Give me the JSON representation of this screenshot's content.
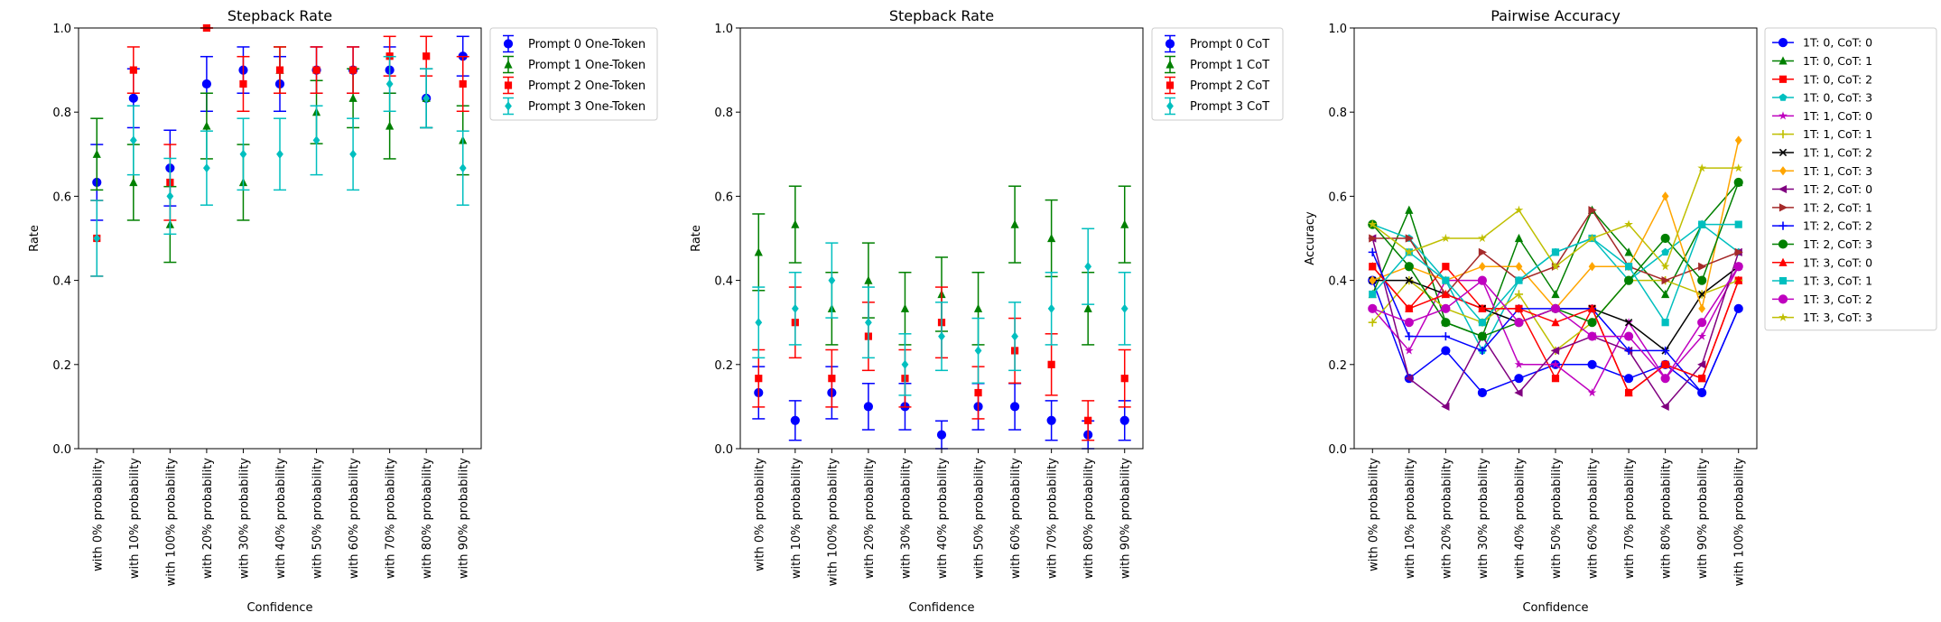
{
  "chart_data": [
    {
      "type": "scatter",
      "title": "Stepback Rate",
      "xlabel": "Confidence",
      "ylabel": "Rate",
      "ylim": [
        0,
        1
      ],
      "yticks": [
        0.0,
        0.2,
        0.4,
        0.6,
        0.8,
        1.0
      ],
      "ytick_labels": [
        "0.0",
        "0.2",
        "0.4",
        "0.6",
        "0.8",
        "1.0"
      ],
      "error_bars": true,
      "legend_position": "outside-right-top",
      "categories": [
        "with 0% probability",
        "with 10% probability",
        "with 100% probability",
        "with 20% probability",
        "with 30% probability",
        "with 40% probability",
        "with 50% probability",
        "with 60% probability",
        "with 70% probability",
        "with 80% probability",
        "with 90% probability"
      ],
      "series": [
        {
          "name": "Prompt 0 One-Token",
          "color": "#0000ff",
          "marker": "circle",
          "values": [
            0.633,
            0.833,
            0.667,
            0.867,
            0.9,
            0.867,
            0.9,
            0.9,
            0.9,
            0.833,
            0.933
          ],
          "err": [
            0.09,
            0.07,
            0.09,
            0.065,
            0.055,
            0.065,
            0.055,
            0.055,
            0.055,
            0.07,
            0.047
          ]
        },
        {
          "name": "Prompt 1 One-Token",
          "color": "#008000",
          "marker": "triangle",
          "values": [
            0.7,
            0.633,
            0.533,
            0.767,
            0.633,
            0.9,
            0.8,
            0.833,
            0.767,
            0.833,
            0.733
          ],
          "err": [
            0.085,
            0.09,
            0.09,
            0.078,
            0.09,
            0.055,
            0.075,
            0.07,
            0.078,
            0.07,
            0.082
          ]
        },
        {
          "name": "Prompt 2 One-Token",
          "color": "#ff0000",
          "marker": "square",
          "values": [
            0.5,
            0.9,
            0.633,
            1.0,
            0.867,
            0.9,
            0.9,
            0.9,
            0.933,
            0.933,
            0.867
          ],
          "err": [
            0.09,
            0.055,
            0.09,
            0.0,
            0.065,
            0.055,
            0.055,
            0.055,
            0.047,
            0.047,
            0.065
          ]
        },
        {
          "name": "Prompt 3 One-Token",
          "color": "#00bfbf",
          "marker": "diamond",
          "values": [
            0.5,
            0.733,
            0.6,
            0.667,
            0.7,
            0.7,
            0.733,
            0.7,
            0.867,
            0.833,
            0.667
          ],
          "err": [
            0.09,
            0.082,
            0.09,
            0.088,
            0.085,
            0.085,
            0.082,
            0.085,
            0.065,
            0.07,
            0.088
          ]
        }
      ]
    },
    {
      "type": "scatter",
      "title": "Stepback Rate",
      "xlabel": "Confidence",
      "ylabel": "Rate",
      "ylim": [
        0,
        1
      ],
      "yticks": [
        0.0,
        0.2,
        0.4,
        0.6,
        0.8,
        1.0
      ],
      "ytick_labels": [
        "0.0",
        "0.2",
        "0.4",
        "0.6",
        "0.8",
        "1.0"
      ],
      "error_bars": true,
      "legend_position": "outside-right-top",
      "categories": [
        "with 0% probability",
        "with 10% probability",
        "with 100% probability",
        "with 20% probability",
        "with 30% probability",
        "with 40% probability",
        "with 50% probability",
        "with 60% probability",
        "with 70% probability",
        "with 80% probability",
        "with 90% probability"
      ],
      "series": [
        {
          "name": "Prompt 0 CoT",
          "color": "#0000ff",
          "marker": "circle",
          "values": [
            0.133,
            0.067,
            0.133,
            0.1,
            0.1,
            0.033,
            0.1,
            0.1,
            0.067,
            0.033,
            0.067
          ],
          "err": [
            0.062,
            0.047,
            0.062,
            0.055,
            0.055,
            0.033,
            0.055,
            0.055,
            0.047,
            0.033,
            0.047
          ]
        },
        {
          "name": "Prompt 1 CoT",
          "color": "#008000",
          "marker": "triangle",
          "values": [
            0.467,
            0.533,
            0.333,
            0.4,
            0.333,
            0.367,
            0.333,
            0.533,
            0.5,
            0.333,
            0.533
          ],
          "err": [
            0.091,
            0.091,
            0.086,
            0.089,
            0.086,
            0.088,
            0.086,
            0.091,
            0.091,
            0.086,
            0.091
          ]
        },
        {
          "name": "Prompt 2 CoT",
          "color": "#ff0000",
          "marker": "square",
          "values": [
            0.167,
            0.3,
            0.167,
            0.267,
            0.167,
            0.3,
            0.133,
            0.233,
            0.2,
            0.067,
            0.167
          ],
          "err": [
            0.068,
            0.084,
            0.068,
            0.081,
            0.068,
            0.084,
            0.062,
            0.077,
            0.073,
            0.047,
            0.068
          ]
        },
        {
          "name": "Prompt 3 CoT",
          "color": "#00bfbf",
          "marker": "diamond",
          "values": [
            0.3,
            0.333,
            0.4,
            0.3,
            0.2,
            0.267,
            0.233,
            0.267,
            0.333,
            0.433,
            0.333
          ],
          "err": [
            0.084,
            0.086,
            0.089,
            0.084,
            0.073,
            0.081,
            0.077,
            0.081,
            0.086,
            0.09,
            0.086
          ]
        }
      ]
    },
    {
      "type": "line",
      "title": "Pairwise Accuracy",
      "xlabel": "Confidence",
      "ylabel": "Accuracy",
      "ylim": [
        0,
        1
      ],
      "yticks": [
        0.0,
        0.2,
        0.4,
        0.6,
        0.8,
        1.0
      ],
      "ytick_labels": [
        "0.0",
        "0.2",
        "0.4",
        "0.6",
        "0.8",
        "1.0"
      ],
      "legend_position": "outside-right-top",
      "categories": [
        "with 0% probability",
        "with 10% probability",
        "with 20% probability",
        "with 30% probability",
        "with 40% probability",
        "with 50% probability",
        "with 60% probability",
        "with 70% probability",
        "with 80% probability",
        "with 90% probability",
        "with 100% probability"
      ],
      "series": [
        {
          "name": "1T: 0, CoT: 0",
          "color": "#0000ff",
          "marker": "circle",
          "values": [
            0.4,
            0.167,
            0.233,
            0.133,
            0.167,
            0.2,
            0.2,
            0.167,
            0.2,
            0.133,
            0.333
          ]
        },
        {
          "name": "1T: 0, CoT: 1",
          "color": "#008000",
          "marker": "triangle",
          "values": [
            0.367,
            0.567,
            0.3,
            0.267,
            0.5,
            0.367,
            0.567,
            0.467,
            0.367,
            0.533,
            0.633
          ]
        },
        {
          "name": "1T: 0, CoT: 2",
          "color": "#ff0000",
          "marker": "square",
          "values": [
            0.433,
            0.333,
            0.433,
            0.333,
            0.333,
            0.167,
            0.333,
            0.133,
            0.2,
            0.167,
            0.4
          ]
        },
        {
          "name": "1T: 0, CoT: 3",
          "color": "#00bfbf",
          "marker": "pentagon",
          "values": [
            0.533,
            0.5,
            0.4,
            0.233,
            0.4,
            0.467,
            0.5,
            0.4,
            0.467,
            0.533,
            0.467
          ]
        },
        {
          "name": "1T: 1, CoT: 0",
          "color": "#bf00bf",
          "marker": "star",
          "values": [
            0.333,
            0.233,
            0.4,
            0.4,
            0.2,
            0.2,
            0.133,
            0.3,
            0.167,
            0.267,
            0.433
          ]
        },
        {
          "name": "1T: 1, CoT: 1",
          "color": "#bfbf00",
          "marker": "plus",
          "values": [
            0.3,
            0.4,
            0.333,
            0.3,
            0.367,
            0.233,
            0.3,
            0.4,
            0.4,
            0.367,
            0.4
          ]
        },
        {
          "name": "1T: 1, CoT: 2",
          "color": "#000000",
          "marker": "x",
          "values": [
            0.4,
            0.4,
            0.367,
            0.333,
            0.3,
            0.333,
            0.333,
            0.3,
            0.233,
            0.367,
            0.433
          ]
        },
        {
          "name": "1T: 1, CoT: 3",
          "color": "#ffa500",
          "marker": "diamond",
          "values": [
            0.4,
            0.433,
            0.4,
            0.433,
            0.433,
            0.333,
            0.433,
            0.433,
            0.6,
            0.333,
            0.733
          ]
        },
        {
          "name": "1T: 2, CoT: 0",
          "color": "#800080",
          "marker": "tri-left",
          "values": [
            0.5,
            0.167,
            0.1,
            0.267,
            0.133,
            0.233,
            0.267,
            0.233,
            0.1,
            0.2,
            0.467
          ]
        },
        {
          "name": "1T: 2, CoT: 1",
          "color": "#a52a2a",
          "marker": "tri-right",
          "values": [
            0.5,
            0.5,
            0.367,
            0.467,
            0.4,
            0.433,
            0.567,
            0.433,
            0.4,
            0.433,
            0.467
          ]
        },
        {
          "name": "1T: 2, CoT: 2",
          "color": "#0000ff",
          "marker": "plus",
          "values": [
            0.467,
            0.267,
            0.267,
            0.233,
            0.333,
            0.333,
            0.333,
            0.233,
            0.233,
            0.133,
            0.333
          ]
        },
        {
          "name": "1T: 2, CoT: 3",
          "color": "#008000",
          "marker": "circle",
          "values": [
            0.533,
            0.433,
            0.3,
            0.267,
            0.3,
            0.333,
            0.3,
            0.4,
            0.5,
            0.4,
            0.633
          ]
        },
        {
          "name": "1T: 3, CoT: 0",
          "color": "#ff0000",
          "marker": "triangle",
          "values": [
            0.433,
            0.333,
            0.367,
            0.333,
            0.333,
            0.3,
            0.333,
            0.133,
            0.2,
            0.167,
            0.4
          ]
        },
        {
          "name": "1T: 3, CoT: 1",
          "color": "#00bfbf",
          "marker": "square",
          "values": [
            0.367,
            0.467,
            0.4,
            0.3,
            0.4,
            0.467,
            0.5,
            0.433,
            0.3,
            0.533,
            0.533
          ]
        },
        {
          "name": "1T: 3, CoT: 2",
          "color": "#bf00bf",
          "marker": "circle",
          "values": [
            0.333,
            0.3,
            0.333,
            0.4,
            0.3,
            0.333,
            0.267,
            0.267,
            0.167,
            0.3,
            0.433
          ]
        },
        {
          "name": "1T: 3, CoT: 3",
          "color": "#bfbf00",
          "marker": "star",
          "values": [
            0.533,
            0.467,
            0.5,
            0.5,
            0.567,
            0.433,
            0.5,
            0.533,
            0.433,
            0.667,
            0.667
          ]
        }
      ]
    }
  ]
}
